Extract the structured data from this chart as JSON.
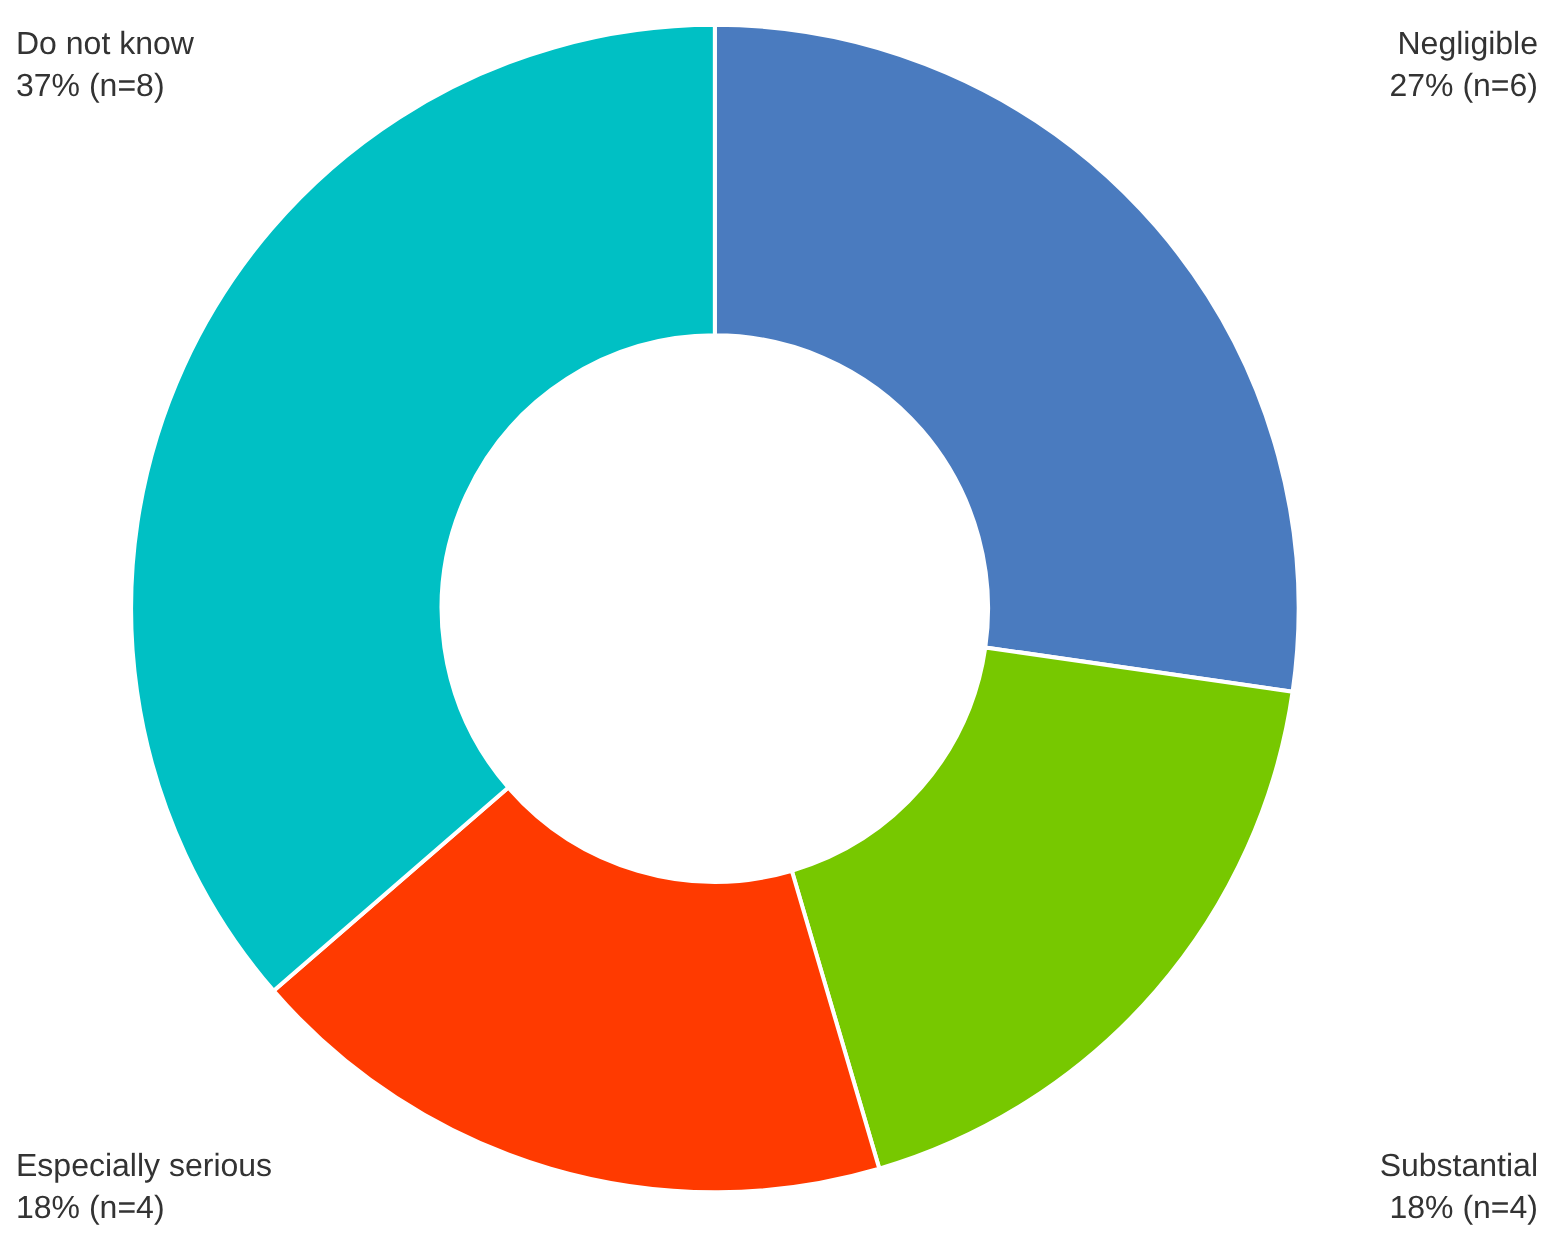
{
  "chart_data": {
    "type": "donut",
    "categories": [
      "Negligible",
      "Substantial",
      "Especially serious",
      "Do not know"
    ],
    "values": [
      6,
      4,
      4,
      8
    ],
    "value_labels": [
      "27% (n=6)",
      "18% (n=4)",
      "18% (n=4)",
      "37% (n=8)"
    ],
    "colors": [
      "#4a7bbf",
      "#77c800",
      "#ff3a00",
      "#00c0c4"
    ]
  }
}
